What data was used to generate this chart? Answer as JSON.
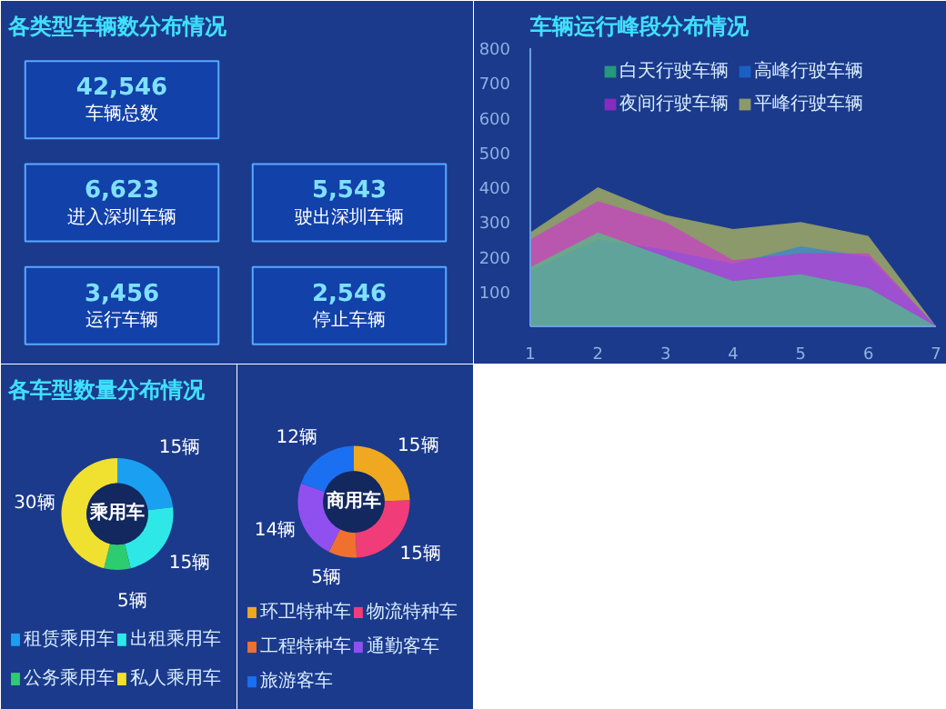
{
  "chart_data": [
    {
      "type": "other",
      "title": "各类型车辆数分布情况",
      "annotations": [
        "42,546",
        "车辆总数",
        "6,623",
        "进入深圳车辆",
        "5,543",
        "驶出深圳车辆",
        "3,456",
        "运行车辆",
        "2,546",
        "停止车辆"
      ]
    },
    {
      "type": "area",
      "title": "车辆运行峰段分布情况",
      "x": [
        1,
        2,
        3,
        4,
        5,
        6,
        7
      ],
      "xlim": [
        1,
        7
      ],
      "xticks": [
        1,
        2,
        3,
        4,
        5,
        6,
        7
      ],
      "ylim": [
        0,
        800
      ],
      "yticks": [
        100,
        200,
        300,
        400,
        500,
        600,
        700,
        800
      ],
      "legend": "top",
      "grid": false,
      "series": [
        {
          "name": "白天行驶车辆",
          "color": "#2ee86e",
          "values": [
            170,
            270,
            200,
            130,
            150,
            110,
            0
          ]
        },
        {
          "name": "夜间行驶车辆",
          "color": "#e020e8",
          "values": [
            250,
            360,
            300,
            190,
            210,
            210,
            0
          ]
        },
        {
          "name": "高峰行驶车辆",
          "color": "#1a80f0",
          "values": [
            160,
            250,
            220,
            180,
            230,
            200,
            0
          ]
        },
        {
          "name": "平峰行驶车辆",
          "color": "#e8e850",
          "values": [
            270,
            400,
            320,
            280,
            300,
            260,
            0
          ]
        }
      ]
    },
    {
      "type": "donut",
      "title": "各车型数量分布情况",
      "annotations": [
        "乘用车"
      ],
      "legend": "bottom",
      "categories": [
        "租赁乘用车",
        "出租乘用车",
        "公务乘用车",
        "私人乘用车"
      ],
      "values": [
        15,
        15,
        5,
        30
      ],
      "value_labels": [
        "15辆",
        "15辆",
        "5辆",
        "30辆"
      ],
      "colors": [
        "#1aa0f0",
        "#2ee8e8",
        "#2ecc71",
        "#f0e030"
      ]
    },
    {
      "type": "donut",
      "annotations": [
        "商用车"
      ],
      "legend": "bottom",
      "categories": [
        "环卫特种车",
        "物流特种车",
        "工程特种车",
        "通勤客车",
        "旅游客车"
      ],
      "values": [
        15,
        15,
        5,
        14,
        12
      ],
      "value_labels": [
        "15辆",
        "15辆",
        "5辆",
        "14辆",
        "12辆"
      ],
      "colors": [
        "#f0a820",
        "#f03c78",
        "#f07030",
        "#9050f0",
        "#1a70f0"
      ]
    }
  ]
}
